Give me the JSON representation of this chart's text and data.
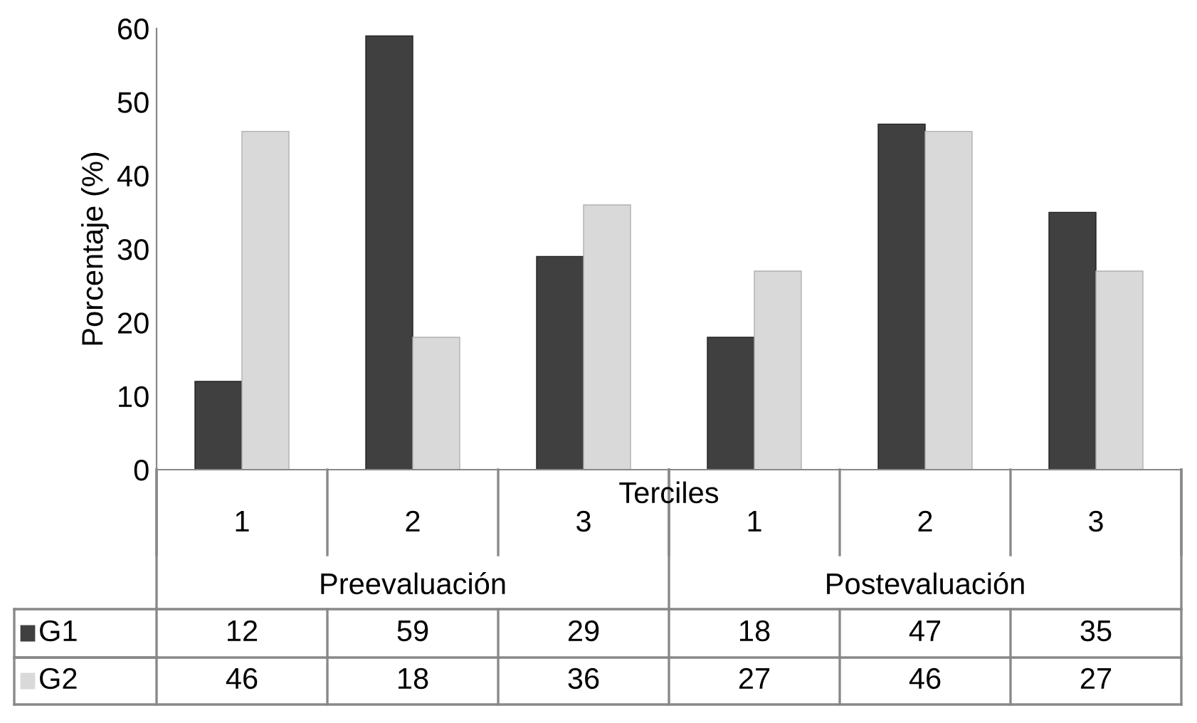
{
  "chart_data": {
    "type": "bar",
    "ylabel": "Porcentaje (%)",
    "xlabel": "Terciles",
    "categories": [
      "1",
      "2",
      "3",
      "1",
      "2",
      "3"
    ],
    "series": [
      {
        "name": "G1",
        "color": "#404040",
        "values": [
          12,
          59,
          29,
          18,
          47,
          35
        ]
      },
      {
        "name": "G2",
        "color": "#d9d9d9",
        "values": [
          46,
          18,
          36,
          27,
          46,
          27
        ]
      }
    ],
    "annotations": [
      "Preevaluación",
      "Postevaluación"
    ],
    "ylim": [
      0,
      60
    ],
    "yticks": [
      0,
      10,
      20,
      30,
      40,
      50,
      60
    ],
    "grid": false,
    "legend": "bottom",
    "data_labels": true
  }
}
